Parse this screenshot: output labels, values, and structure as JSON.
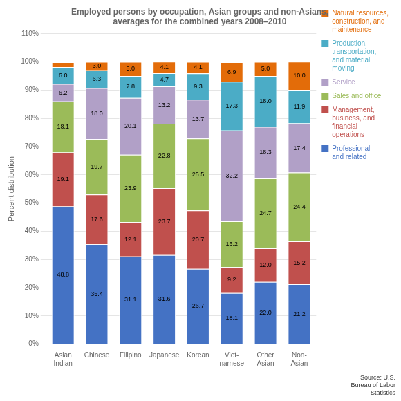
{
  "chart_data": {
    "type": "bar",
    "stacked": true,
    "title": "Employed persons by occupation, Asian groups and non-Asians,\naverages for the combined years 2008–2010",
    "categories": [
      "Asian\nIndian",
      "Chinese",
      "Filipino",
      "Japanese",
      "Korean",
      "Viet-\nnamese",
      "Other\nAsian",
      "Non-\nAsian"
    ],
    "series": [
      {
        "name": "Professional\nand related",
        "color": "#4472C4",
        "values": [
          48.8,
          35.4,
          31.1,
          31.6,
          26.7,
          18.1,
          22.0,
          21.2
        ],
        "value_labels": [
          "48.8",
          "35.4",
          "31.1",
          "31.6",
          "26.7",
          "18.1",
          "22.0",
          "21.2"
        ]
      },
      {
        "name": "Management,\nbusiness, and\nfinancial\noperations",
        "color": "#C0504D",
        "values": [
          19.1,
          17.6,
          12.1,
          23.7,
          20.7,
          9.2,
          12.0,
          15.2
        ],
        "value_labels": [
          "19.1",
          "17.6",
          "12.1",
          "23.7",
          "20.7",
          "9.2",
          "12.0",
          "15.2"
        ]
      },
      {
        "name": "Sales and office",
        "color": "#9BBB59",
        "values": [
          18.1,
          19.7,
          23.9,
          22.8,
          25.5,
          16.2,
          24.7,
          24.4
        ],
        "value_labels": [
          "18.1",
          "19.7",
          "23.9",
          "22.8",
          "25.5",
          "16.2",
          "24.7",
          "24.4"
        ]
      },
      {
        "name": "Service",
        "color": "#B1A0C7",
        "values": [
          6.2,
          18.0,
          20.1,
          13.2,
          13.7,
          32.2,
          18.3,
          17.4
        ],
        "value_labels": [
          "6.2",
          "18.0",
          "20.1",
          "13.2",
          "13.7",
          "32.2",
          "18.3",
          "17.4"
        ]
      },
      {
        "name": "Production,\ntransportation,\nand material\nmoving",
        "color": "#4BACC6",
        "values": [
          6.0,
          6.3,
          7.8,
          4.7,
          9.3,
          17.3,
          18.0,
          11.9
        ],
        "value_labels": [
          "6.0",
          "6.3",
          "7.8",
          "4.7",
          "9.3",
          "17.3",
          "18.0",
          "11.9"
        ]
      },
      {
        "name": "Natural resources,\nconstruction, and\nmaintenance",
        "color": "#E36C09",
        "values": [
          1.7,
          3.0,
          5.0,
          4.1,
          4.1,
          6.9,
          5.0,
          10.0
        ],
        "value_labels": [
          null,
          "3.0",
          "5.0",
          "4.1",
          "4.1",
          "6.9",
          "5.0",
          "10.0"
        ]
      }
    ],
    "data_labels": true,
    "ylabel": "Percent distribution",
    "source": "Source: U.S.\nBureau of Labor\nStatistics",
    "ylim": [
      0,
      110
    ],
    "yticks": [
      {
        "value": 0,
        "label": "0%"
      },
      {
        "value": 10,
        "label": "10%"
      },
      {
        "value": 20,
        "label": "20%"
      },
      {
        "value": 30,
        "label": "30%"
      },
      {
        "value": 40,
        "label": "40%"
      },
      {
        "value": 50,
        "label": "50%"
      },
      {
        "value": 60,
        "label": "60%"
      },
      {
        "value": 70,
        "label": "70%"
      },
      {
        "value": 80,
        "label": "80%"
      },
      {
        "value": 90,
        "label": "90%"
      },
      {
        "value": 100,
        "label": "100%"
      },
      {
        "value": 110,
        "label": "110%"
      }
    ],
    "grid": true,
    "legend": "right"
  }
}
